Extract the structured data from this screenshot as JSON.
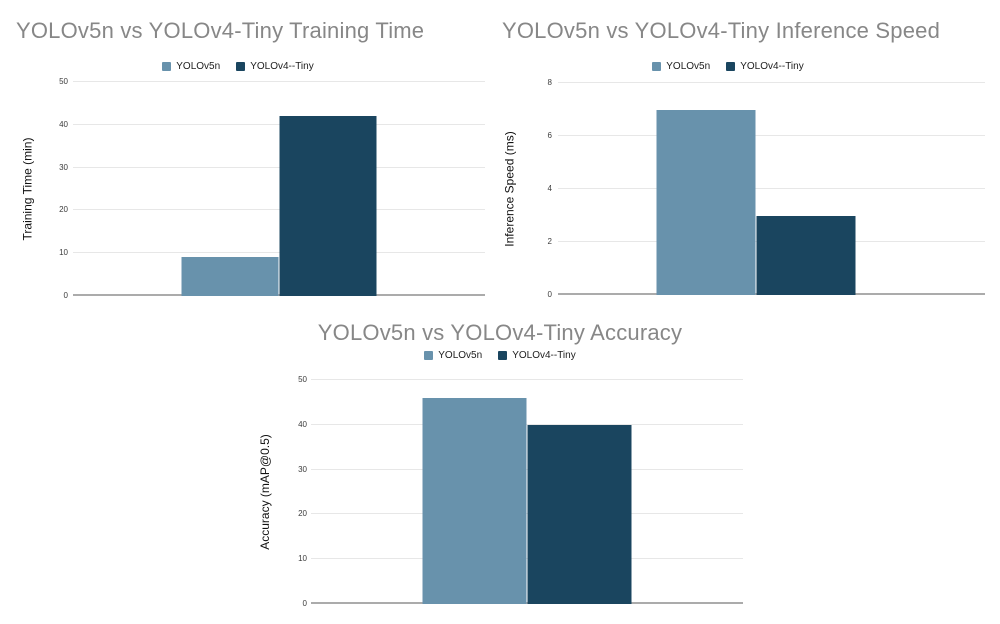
{
  "page": {
    "background": "#ffffff"
  },
  "colors": {
    "series_yolov5n": "#6892ac",
    "series_yolov4_tiny": "#1a455f",
    "title_text": "#878787",
    "gridline": "#e7e7e7",
    "axis_line": "#ababab",
    "tick_text": "#3c3c3c",
    "legend_text": "#202020"
  },
  "chart_data": [
    {
      "type": "bar",
      "title": "YOLOv5n vs YOLOv4-Tiny Training Time",
      "xlabel": "",
      "ylabel": "Training Time (min)",
      "ylim": [
        0,
        50
      ],
      "yticks": [
        0,
        10,
        20,
        30,
        40,
        50
      ],
      "grid": true,
      "legend_position": "top-center",
      "categories": [
        "YOLOv5n",
        "YOLOv4--Tiny"
      ],
      "series": [
        {
          "name": "YOLOv5n",
          "color": "#6892ac",
          "value": 9
        },
        {
          "name": "YOLOv4--Tiny",
          "color": "#1a455f",
          "value": 42
        }
      ]
    },
    {
      "type": "bar",
      "title": "YOLOv5n vs YOLOv4-Tiny Inference Speed",
      "xlabel": "",
      "ylabel": "Inference Speed (ms)",
      "ylim": [
        0,
        8
      ],
      "yticks": [
        0,
        2,
        4,
        6,
        8
      ],
      "grid": true,
      "legend_position": "top-center",
      "categories": [
        "YOLOv5n",
        "YOLOv4--Tiny"
      ],
      "series": [
        {
          "name": "YOLOv5n",
          "color": "#6892ac",
          "value": 7
        },
        {
          "name": "YOLOv4--Tiny",
          "color": "#1a455f",
          "value": 3
        }
      ]
    },
    {
      "type": "bar",
      "title": "YOLOv5n vs YOLOv4-Tiny Accuracy",
      "xlabel": "",
      "ylabel": "Accuracy (mAP@0.5)",
      "ylim": [
        0,
        50
      ],
      "yticks": [
        0,
        10,
        20,
        30,
        40,
        50
      ],
      "grid": true,
      "legend_position": "top-center",
      "categories": [
        "YOLOv5n",
        "YOLOv4--Tiny"
      ],
      "series": [
        {
          "name": "YOLOv5n",
          "color": "#6892ac",
          "value": 46
        },
        {
          "name": "YOLOv4--Tiny",
          "color": "#1a455f",
          "value": 40
        }
      ]
    }
  ]
}
